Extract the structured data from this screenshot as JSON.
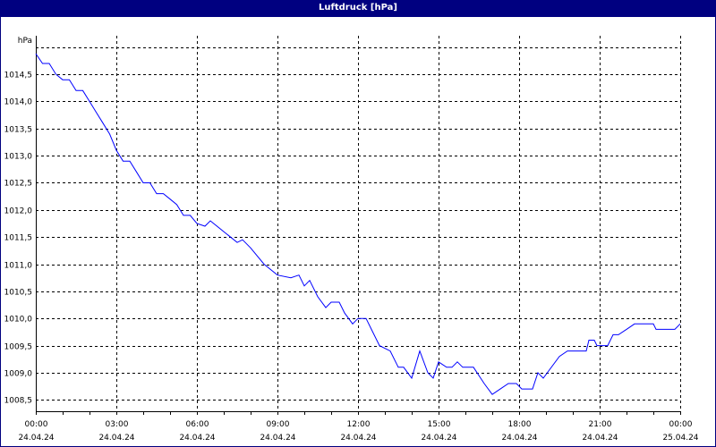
{
  "chart_data": {
    "type": "line",
    "title": "Luftdruck [hPa]",
    "ylabel": "hPa",
    "xlabel": "",
    "ylim": [
      1008.29,
      1015.21
    ],
    "xlim": [
      0,
      24
    ],
    "grid": true,
    "colors": {
      "title_bg": "#000080",
      "line": "#0000ff",
      "grid": "#000000"
    },
    "yticks": [
      {
        "value": 1015.0,
        "label": ""
      },
      {
        "value": 1014.5,
        "label": "1014,5"
      },
      {
        "value": 1014.0,
        "label": "1014,0"
      },
      {
        "value": 1013.5,
        "label": "1013,5"
      },
      {
        "value": 1013.0,
        "label": "1013,0"
      },
      {
        "value": 1012.5,
        "label": "1012,5"
      },
      {
        "value": 1012.0,
        "label": "1012,0"
      },
      {
        "value": 1011.5,
        "label": "1011,5"
      },
      {
        "value": 1011.0,
        "label": "1011,0"
      },
      {
        "value": 1010.5,
        "label": "1010,5"
      },
      {
        "value": 1010.0,
        "label": "1010,0"
      },
      {
        "value": 1009.5,
        "label": "1009,5"
      },
      {
        "value": 1009.0,
        "label": "1009,0"
      },
      {
        "value": 1008.5,
        "label": "1008,5"
      }
    ],
    "xticks": [
      {
        "value": 0,
        "time": "00:00",
        "date": "24.04.24"
      },
      {
        "value": 3,
        "time": "03:00",
        "date": "24.04.24"
      },
      {
        "value": 6,
        "time": "06:00",
        "date": "24.04.24"
      },
      {
        "value": 9,
        "time": "09:00",
        "date": "24.04.24"
      },
      {
        "value": 12,
        "time": "12:00",
        "date": "24.04.24"
      },
      {
        "value": 15,
        "time": "15:00",
        "date": "24.04.24"
      },
      {
        "value": 18,
        "time": "18:00",
        "date": "24.04.24"
      },
      {
        "value": 21,
        "time": "21:00",
        "date": "24.04.24"
      },
      {
        "value": 24,
        "time": "00:00",
        "date": "25.04.24"
      }
    ],
    "series": [
      {
        "name": "Luftdruck",
        "x": [
          0,
          0.25,
          0.5,
          0.75,
          1.0,
          1.25,
          1.5,
          1.75,
          2.0,
          2.25,
          2.5,
          2.75,
          3.0,
          3.25,
          3.5,
          3.75,
          4.0,
          4.25,
          4.5,
          4.75,
          5.0,
          5.25,
          5.5,
          5.75,
          6.0,
          6.3,
          6.5,
          7.0,
          7.5,
          7.7,
          8.0,
          8.5,
          9.0,
          9.5,
          9.8,
          10.0,
          10.2,
          10.5,
          10.8,
          11.0,
          11.3,
          11.5,
          11.8,
          12.0,
          12.3,
          12.5,
          12.8,
          13.2,
          13.5,
          13.7,
          14.0,
          14.3,
          14.6,
          14.8,
          15.0,
          15.3,
          15.5,
          15.7,
          15.9,
          16.3,
          16.7,
          17.0,
          17.3,
          17.6,
          17.9,
          18.1,
          18.5,
          18.7,
          18.9,
          19.5,
          19.8,
          20.5,
          20.6,
          20.8,
          20.9,
          21.3,
          21.5,
          21.7,
          22.0,
          22.3,
          23.0,
          23.1,
          23.8,
          24.0
        ],
        "values": [
          1014.88,
          1014.7,
          1014.7,
          1014.5,
          1014.4,
          1014.4,
          1014.2,
          1014.2,
          1014.0,
          1013.8,
          1013.6,
          1013.4,
          1013.1,
          1012.9,
          1012.9,
          1012.7,
          1012.5,
          1012.5,
          1012.3,
          1012.3,
          1012.2,
          1012.1,
          1011.9,
          1011.9,
          1011.75,
          1011.7,
          1011.8,
          1011.6,
          1011.4,
          1011.45,
          1011.3,
          1011.0,
          1010.8,
          1010.75,
          1010.8,
          1010.6,
          1010.7,
          1010.4,
          1010.2,
          1010.3,
          1010.3,
          1010.1,
          1009.9,
          1010.0,
          1010.0,
          1009.8,
          1009.5,
          1009.4,
          1009.1,
          1009.1,
          1008.9,
          1009.4,
          1009.0,
          1008.9,
          1009.2,
          1009.1,
          1009.1,
          1009.2,
          1009.1,
          1009.1,
          1008.8,
          1008.6,
          1008.7,
          1008.8,
          1008.8,
          1008.7,
          1008.7,
          1009.0,
          1008.9,
          1009.3,
          1009.4,
          1009.4,
          1009.6,
          1009.6,
          1009.5,
          1009.5,
          1009.7,
          1009.7,
          1009.8,
          1009.9,
          1009.9,
          1009.8,
          1009.8,
          1009.9
        ]
      }
    ]
  }
}
